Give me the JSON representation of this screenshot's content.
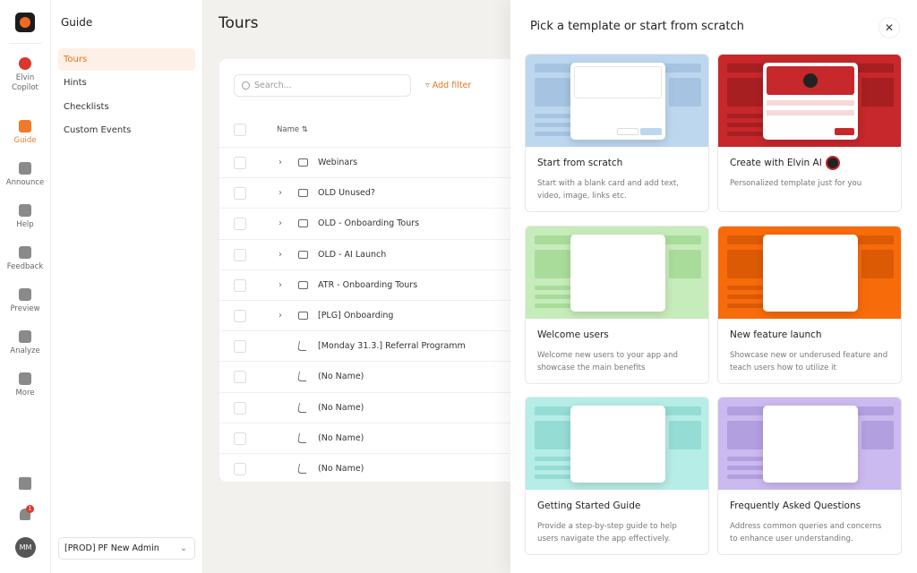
{
  "nav": {
    "items": [
      "Elvin Copilot",
      "Guide",
      "Announce",
      "Help",
      "Feedback",
      "Preview",
      "Analyze",
      "More"
    ],
    "badge": "1",
    "avatar": "MM"
  },
  "sidebar": {
    "title": "Guide",
    "items": [
      "Tours",
      "Hints",
      "Checklists",
      "Custom Events"
    ],
    "workspace": "[PROD] PF New Admin"
  },
  "main": {
    "title": "Tours",
    "search_placeholder": "Search...",
    "add_filter": "Add filter",
    "column": "Name",
    "folders": [
      "Webinars",
      "OLD Unused?",
      "OLD - Onboarding Tours",
      "OLD - AI Launch",
      "ATR - Onboarding Tours",
      "[PLG] Onboarding"
    ],
    "tours": [
      "[Monday 31.3.] Referral Programm",
      "(No Name)",
      "(No Name)",
      "(No Name)",
      "(No Name)"
    ]
  },
  "panel": {
    "title": "Pick a template or start from scratch",
    "templates": [
      {
        "title": "Start from scratch",
        "description": "Start with a blank card and add text, video, image, links etc."
      },
      {
        "title": "Create with Elvin AI",
        "description": "Personalized template just for you"
      },
      {
        "title": "Welcome users",
        "description": "Welcome new users to your app and showcase the main benefits"
      },
      {
        "title": "New feature launch",
        "description": "Showcase new or underused feature and teach users how to utilize it"
      },
      {
        "title": "Getting Started Guide",
        "description": "Provide a step-by-step guide to help users navigate the app effectively."
      },
      {
        "title": "Frequently Asked Questions",
        "description": "Address common queries and concerns to enhance user understanding."
      }
    ]
  }
}
